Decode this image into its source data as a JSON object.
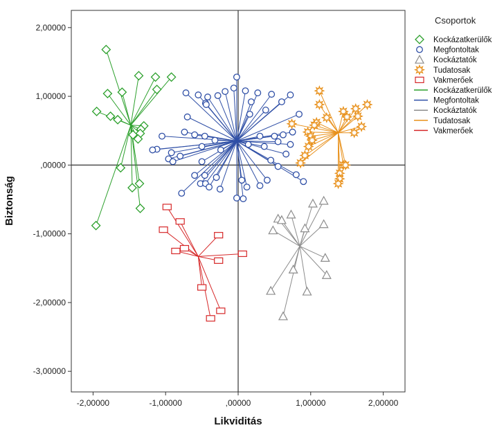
{
  "chart_data": {
    "type": "scatter",
    "title": "",
    "xlabel": "Likviditás",
    "ylabel": "Biztonság",
    "xlim": [
      -2.3,
      2.3
    ],
    "ylim": [
      -3.3,
      2.25
    ],
    "xticks": [
      -2.0,
      -1.0,
      0.0,
      1.0,
      2.0
    ],
    "xtick_labels": [
      "-2,00000",
      "-1,00000",
      ",00000",
      "1,00000",
      "2,00000"
    ],
    "yticks": [
      2.0,
      1.0,
      0.0,
      -1.0,
      -2.0,
      -3.0
    ],
    "ytick_labels": [
      "2,00000",
      "1,00000",
      ",00000",
      "-1,00000",
      "-2,00000",
      "-3,00000"
    ],
    "reference_lines": {
      "x": 0.0,
      "y": 0.0
    },
    "grid": false,
    "legend": {
      "title": "Csoportok",
      "position": "right",
      "marker_entries": [
        "Kockázatkerülők",
        "Megfontoltak",
        "Kockáztatók",
        "Tudatosak",
        "Vakmerőek"
      ],
      "line_entries": [
        "Kockázatkerülők",
        "Megfontoltak",
        "Kockáztatók",
        "Tudatosak",
        "Vakmerőek"
      ]
    },
    "series": [
      {
        "name": "Kockázatkerülők",
        "color": "#2ca02c",
        "marker": "diamond",
        "centroid": [
          -1.48,
          0.58
        ],
        "points": [
          [
            -1.82,
            1.68
          ],
          [
            -1.37,
            1.3
          ],
          [
            -1.14,
            1.28
          ],
          [
            -0.92,
            1.28
          ],
          [
            -1.12,
            1.1
          ],
          [
            -1.8,
            1.04
          ],
          [
            -1.6,
            1.06
          ],
          [
            -1.95,
            0.78
          ],
          [
            -1.76,
            0.71
          ],
          [
            -1.66,
            0.66
          ],
          [
            -1.3,
            0.57
          ],
          [
            -1.34,
            0.52
          ],
          [
            -1.35,
            0.46
          ],
          [
            -1.45,
            0.44
          ],
          [
            -1.38,
            0.38
          ],
          [
            -1.62,
            -0.04
          ],
          [
            -1.36,
            -0.27
          ],
          [
            -1.46,
            -0.33
          ],
          [
            -1.35,
            -0.63
          ],
          [
            -1.96,
            -0.88
          ]
        ]
      },
      {
        "name": "Megfontoltak",
        "color": "#2f4fa6",
        "marker": "circle",
        "centroid": [
          -0.02,
          0.35
        ],
        "points": [
          [
            -0.02,
            1.28
          ],
          [
            -0.72,
            1.05
          ],
          [
            -0.55,
            1.02
          ],
          [
            -0.42,
            0.99
          ],
          [
            -0.28,
            1.01
          ],
          [
            -0.18,
            1.07
          ],
          [
            -0.06,
            1.12
          ],
          [
            0.1,
            1.08
          ],
          [
            0.27,
            1.05
          ],
          [
            0.46,
            1.03
          ],
          [
            0.72,
            1.02
          ],
          [
            0.6,
            0.92
          ],
          [
            0.18,
            0.92
          ],
          [
            -0.45,
            0.9
          ],
          [
            -0.44,
            0.88
          ],
          [
            0.38,
            0.8
          ],
          [
            0.16,
            0.74
          ],
          [
            -0.7,
            0.7
          ],
          [
            0.84,
            0.74
          ],
          [
            -1.05,
            0.42
          ],
          [
            -0.74,
            0.48
          ],
          [
            -0.6,
            0.44
          ],
          [
            -0.46,
            0.42
          ],
          [
            -0.32,
            0.36
          ],
          [
            0.3,
            0.42
          ],
          [
            0.5,
            0.42
          ],
          [
            0.62,
            0.44
          ],
          [
            0.75,
            0.48
          ],
          [
            -1.12,
            0.23
          ],
          [
            -1.18,
            0.22
          ],
          [
            -0.92,
            0.18
          ],
          [
            -0.8,
            0.13
          ],
          [
            -0.5,
            0.27
          ],
          [
            -0.24,
            0.22
          ],
          [
            0.14,
            0.3
          ],
          [
            0.36,
            0.27
          ],
          [
            0.55,
            0.34
          ],
          [
            0.66,
            0.16
          ],
          [
            0.72,
            0.3
          ],
          [
            -0.96,
            0.09
          ],
          [
            -0.9,
            0.05
          ],
          [
            -0.5,
            0.05
          ],
          [
            -0.6,
            -0.15
          ],
          [
            -0.46,
            -0.15
          ],
          [
            -0.3,
            -0.18
          ],
          [
            0.45,
            0.07
          ],
          [
            0.55,
            -0.02
          ],
          [
            0.8,
            -0.14
          ],
          [
            0.9,
            -0.24
          ],
          [
            -0.78,
            -0.41
          ],
          [
            -0.52,
            -0.27
          ],
          [
            -0.45,
            -0.27
          ],
          [
            -0.4,
            -0.32
          ],
          [
            -0.25,
            -0.35
          ],
          [
            0.05,
            -0.22
          ],
          [
            0.12,
            -0.32
          ],
          [
            0.3,
            -0.3
          ],
          [
            0.4,
            -0.22
          ],
          [
            -0.02,
            -0.48
          ],
          [
            0.07,
            -0.49
          ]
        ]
      },
      {
        "name": "Kockáztatók",
        "color": "#8c8c8c",
        "marker": "triangle",
        "centroid": [
          0.85,
          -1.18
        ],
        "points": [
          [
            0.55,
            -0.78
          ],
          [
            0.6,
            -0.8
          ],
          [
            0.73,
            -0.72
          ],
          [
            1.03,
            -0.56
          ],
          [
            1.18,
            -0.52
          ],
          [
            1.18,
            -0.86
          ],
          [
            0.48,
            -0.95
          ],
          [
            0.92,
            -0.92
          ],
          [
            1.2,
            -1.35
          ],
          [
            0.76,
            -1.52
          ],
          [
            1.22,
            -1.6
          ],
          [
            0.45,
            -1.83
          ],
          [
            0.95,
            -1.84
          ],
          [
            0.62,
            -2.2
          ]
        ]
      },
      {
        "name": "Tudatosak",
        "color": "#e8901a",
        "marker": "star",
        "centroid": [
          1.38,
          0.47
        ],
        "points": [
          [
            1.12,
            1.08
          ],
          [
            1.12,
            0.88
          ],
          [
            1.78,
            0.88
          ],
          [
            1.62,
            0.82
          ],
          [
            1.45,
            0.78
          ],
          [
            1.5,
            0.7
          ],
          [
            1.65,
            0.71
          ],
          [
            1.22,
            0.69
          ],
          [
            1.08,
            0.62
          ],
          [
            1.05,
            0.58
          ],
          [
            0.74,
            0.6
          ],
          [
            1.7,
            0.56
          ],
          [
            1.6,
            0.47
          ],
          [
            0.96,
            0.48
          ],
          [
            1.0,
            0.42
          ],
          [
            1.02,
            0.36
          ],
          [
            0.97,
            0.27
          ],
          [
            0.92,
            0.14
          ],
          [
            0.86,
            0.03
          ],
          [
            1.45,
            0.0
          ],
          [
            1.48,
            0.0
          ],
          [
            1.4,
            -0.12
          ],
          [
            1.4,
            -0.2
          ],
          [
            1.38,
            -0.27
          ]
        ]
      },
      {
        "name": "Vakmerőek",
        "color": "#d62728",
        "marker": "square",
        "centroid": [
          -0.55,
          -1.33
        ],
        "points": [
          [
            -0.98,
            -0.61
          ],
          [
            -0.8,
            -0.82
          ],
          [
            -1.03,
            -0.94
          ],
          [
            -0.27,
            -1.02
          ],
          [
            -0.74,
            -1.21
          ],
          [
            -0.86,
            -1.25
          ],
          [
            0.06,
            -1.29
          ],
          [
            -0.27,
            -1.39
          ],
          [
            -0.5,
            -1.78
          ],
          [
            -0.24,
            -2.12
          ],
          [
            -0.38,
            -2.23
          ]
        ]
      }
    ]
  }
}
